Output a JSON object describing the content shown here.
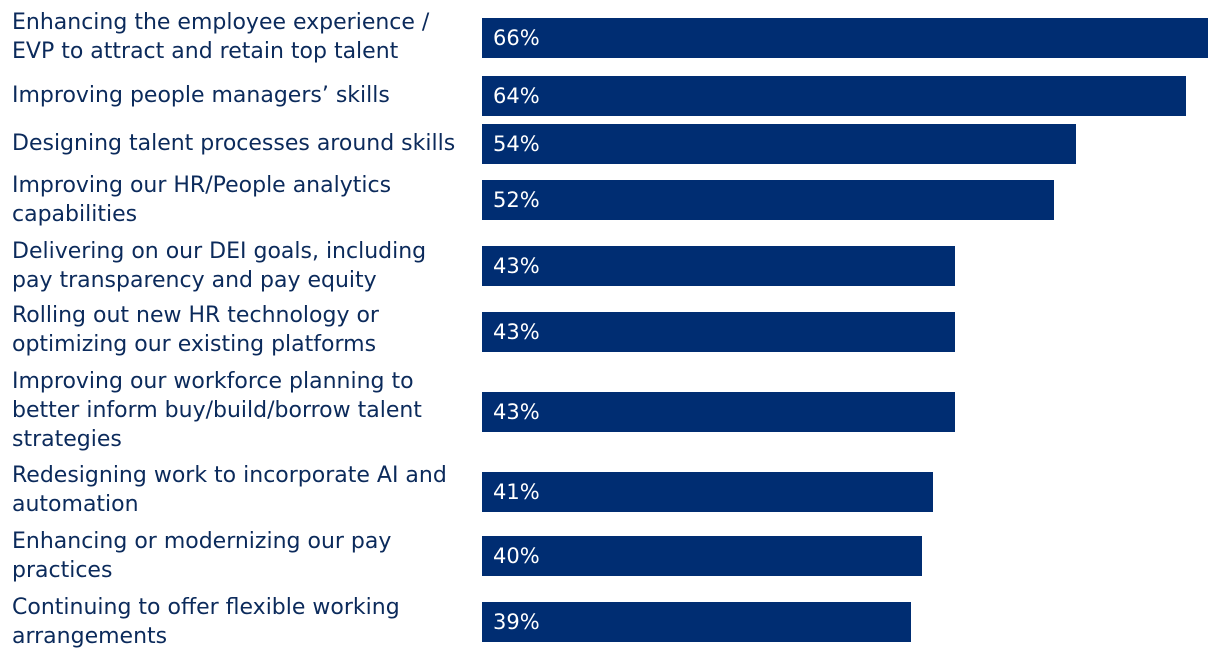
{
  "chart_data": {
    "type": "bar",
    "orientation": "horizontal",
    "bar_color": "#002d72",
    "label_color": "#0b2a5b",
    "value_suffix": "%",
    "xlim": [
      0,
      66
    ],
    "categories": [
      "Enhancing the employee experience / EVP to attract and retain top talent",
      "Improving people managers’ skills",
      "Designing talent processes around skills",
      "Improving our HR/People analytics capabilities",
      "Delivering on our DEI goals, including pay transparency and pay equity",
      "Rolling out new HR technology or optimizing our existing platforms",
      "Improving our workforce planning to better inform buy/build/borrow talent strategies",
      "Redesigning work to incorporate AI and automation",
      "Enhancing or modernizing our pay practices",
      "Continuing to offer flexible working arrangements"
    ],
    "values": [
      66,
      64,
      54,
      52,
      43,
      43,
      43,
      41,
      40,
      39
    ],
    "value_labels": [
      "66%",
      "64%",
      "54%",
      "52%",
      "43%",
      "43%",
      "43%",
      "41%",
      "40%",
      "39%"
    ]
  }
}
